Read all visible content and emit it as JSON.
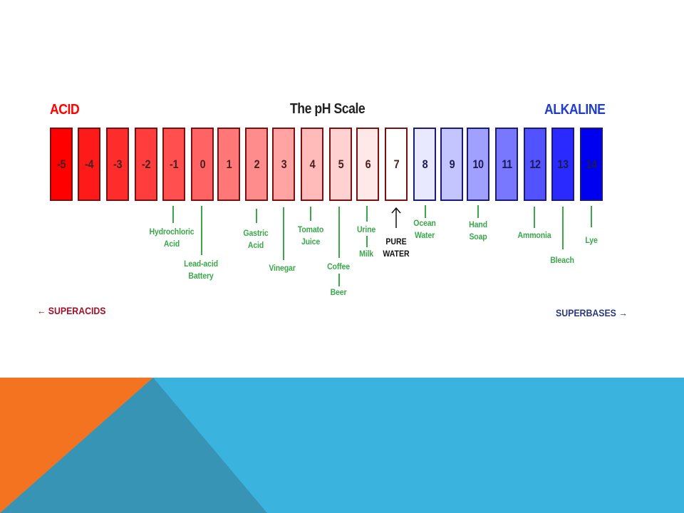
{
  "header": {
    "acid_label": "ACID",
    "title": "The pH Scale",
    "alkaline_label": "ALKALINE"
  },
  "scale": [
    {
      "value": "-5",
      "color": "#ff0000"
    },
    {
      "value": "-4",
      "color": "#ff1a1a"
    },
    {
      "value": "-3",
      "color": "#ff2c2c"
    },
    {
      "value": "-2",
      "color": "#ff3d3d"
    },
    {
      "value": "-1",
      "color": "#ff4f4f"
    },
    {
      "value": "0",
      "color": "#ff6363"
    },
    {
      "value": "1",
      "color": "#ff7777"
    },
    {
      "value": "2",
      "color": "#ff8c8c"
    },
    {
      "value": "3",
      "color": "#ffa3a3"
    },
    {
      "value": "4",
      "color": "#ffbaba"
    },
    {
      "value": "5",
      "color": "#ffd1d1"
    },
    {
      "value": "6",
      "color": "#ffe8e8"
    },
    {
      "value": "7",
      "color": "#ffffff"
    },
    {
      "value": "8",
      "color": "#e8e8ff"
    },
    {
      "value": "9",
      "color": "#c4c4ff"
    },
    {
      "value": "10",
      "color": "#a0a0ff"
    },
    {
      "value": "11",
      "color": "#7878ff"
    },
    {
      "value": "12",
      "color": "#5252ff"
    },
    {
      "value": "13",
      "color": "#2a2aff"
    },
    {
      "value": "14",
      "color": "#0000f0"
    }
  ],
  "substances": [
    {
      "id": "hydrochloric",
      "label": "Hydrochloric\nAcid"
    },
    {
      "id": "lead-acid",
      "label": "Lead-acid\nBattery"
    },
    {
      "id": "gastric",
      "label": "Gastric\nAcid"
    },
    {
      "id": "vinegar",
      "label": "Vinegar"
    },
    {
      "id": "tomato",
      "label": "Tomato\nJuice"
    },
    {
      "id": "coffee",
      "label": "Coffee"
    },
    {
      "id": "beer",
      "label": "Beer"
    },
    {
      "id": "urine",
      "label": "Urine"
    },
    {
      "id": "milk",
      "label": "Milk"
    },
    {
      "id": "ocean",
      "label": "Ocean\nWater"
    },
    {
      "id": "hand-soap",
      "label": "Hand\nSoap"
    },
    {
      "id": "ammonia",
      "label": "Ammonia"
    },
    {
      "id": "bleach",
      "label": "Bleach"
    },
    {
      "id": "lye",
      "label": "Lye"
    }
  ],
  "pure_water": "PURE\nWATER",
  "footer": {
    "superacids": "← SUPERACIDS",
    "superbases": "SUPERBASES →"
  },
  "colors": {
    "acid": "#ff0000",
    "alkaline": "#1f3ccc",
    "annotation": "#3aa84a",
    "bg_blue": "#3bb3df",
    "bg_orange": "#f47321",
    "bg_dark_teal": "#3894b4"
  }
}
